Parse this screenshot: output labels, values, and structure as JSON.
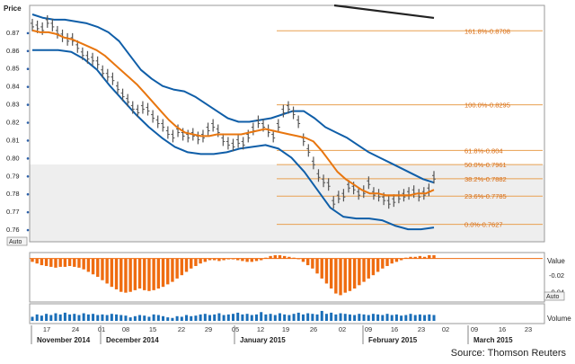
{
  "chart_data": {
    "type": "line",
    "price_axis": {
      "label": "Price",
      "ticks": [
        0.87,
        0.86,
        0.85,
        0.84,
        0.83,
        0.82,
        0.81,
        0.8,
        0.79,
        0.78,
        0.77,
        0.76
      ],
      "ylim": [
        0.753,
        0.885
      ],
      "auto_label": "Auto"
    },
    "x_axis": {
      "day_ticks": [
        "17",
        "24",
        "01",
        "08",
        "15",
        "22",
        "29",
        "05",
        "12",
        "19",
        "26",
        "02",
        "09",
        "16",
        "23",
        "02",
        "09",
        "16",
        "23"
      ],
      "month_labels": [
        "November 2014",
        "December 2014",
        "January 2015",
        "February 2015",
        "March 2015"
      ]
    },
    "price_bars": [
      0.874,
      0.873,
      0.872,
      0.876,
      0.874,
      0.87,
      0.868,
      0.866,
      0.866,
      0.862,
      0.858,
      0.856,
      0.855,
      0.853,
      0.848,
      0.846,
      0.844,
      0.839,
      0.835,
      0.832,
      0.828,
      0.826,
      0.828,
      0.827,
      0.823,
      0.82,
      0.818,
      0.814,
      0.812,
      0.815,
      0.813,
      0.812,
      0.813,
      0.811,
      0.812,
      0.816,
      0.818,
      0.815,
      0.81,
      0.808,
      0.807,
      0.809,
      0.808,
      0.812,
      0.816,
      0.82,
      0.818,
      0.815,
      0.812,
      0.818,
      0.826,
      0.828,
      0.825,
      0.82,
      0.81,
      0.804,
      0.797,
      0.79,
      0.787,
      0.785,
      0.775,
      0.778,
      0.779,
      0.784,
      0.783,
      0.78,
      0.781,
      0.786,
      0.78,
      0.779,
      0.777,
      0.775,
      0.776,
      0.778,
      0.779,
      0.78,
      0.781,
      0.779,
      0.78,
      0.782,
      0.789
    ],
    "moving_average": [
      0.871,
      0.87,
      0.87,
      0.869,
      0.867,
      0.866,
      0.864,
      0.862,
      0.86,
      0.857,
      0.853,
      0.849,
      0.845,
      0.841,
      0.836,
      0.831,
      0.826,
      0.821,
      0.817,
      0.814,
      0.813,
      0.812,
      0.812,
      0.813,
      0.813,
      0.813,
      0.813,
      0.814,
      0.815,
      0.816,
      0.815,
      0.814,
      0.813,
      0.812,
      0.811,
      0.809,
      0.804,
      0.798,
      0.792,
      0.788,
      0.785,
      0.782,
      0.78,
      0.78,
      0.779,
      0.779,
      0.779,
      0.779,
      0.78,
      0.78,
      0.782
    ],
    "bollinger_upper": [
      0.88,
      0.878,
      0.877,
      0.877,
      0.876,
      0.875,
      0.873,
      0.87,
      0.865,
      0.857,
      0.849,
      0.844,
      0.84,
      0.838,
      0.837,
      0.834,
      0.83,
      0.826,
      0.822,
      0.82,
      0.82,
      0.821,
      0.822,
      0.824,
      0.826,
      0.826,
      0.822,
      0.817,
      0.814,
      0.811,
      0.807,
      0.803,
      0.8,
      0.797,
      0.794,
      0.791,
      0.788,
      0.786
    ],
    "bollinger_lower": [
      0.86,
      0.86,
      0.86,
      0.859,
      0.855,
      0.849,
      0.84,
      0.832,
      0.824,
      0.817,
      0.811,
      0.806,
      0.803,
      0.802,
      0.802,
      0.803,
      0.805,
      0.806,
      0.807,
      0.805,
      0.8,
      0.792,
      0.782,
      0.772,
      0.767,
      0.766,
      0.766,
      0.765,
      0.762,
      0.76,
      0.76,
      0.761
    ],
    "trend_line": [
      0.885,
      0.878
    ],
    "fibonacci": [
      {
        "label": "161.8%-0.8708",
        "value": 0.8708
      },
      {
        "label": "100.0%-0.8295",
        "value": 0.8295
      },
      {
        "label": "61.8%-0.804",
        "value": 0.804
      },
      {
        "label": "50.0%-0.7961",
        "value": 0.7961
      },
      {
        "label": "38.2%-0.7882",
        "value": 0.7882
      },
      {
        "label": "23.6%-0.7785",
        "value": 0.7785
      },
      {
        "label": "0.0%-0.7627",
        "value": 0.7627
      }
    ],
    "oscillator": {
      "label": "Value",
      "ticks": [
        "-0.02",
        "-0.04"
      ],
      "ylim": [
        -0.05,
        0.005
      ],
      "auto_label": "Auto",
      "values": [
        -0.004,
        -0.006,
        -0.008,
        -0.009,
        -0.01,
        -0.011,
        -0.01,
        -0.01,
        -0.009,
        -0.01,
        -0.011,
        -0.013,
        -0.016,
        -0.019,
        -0.022,
        -0.026,
        -0.03,
        -0.034,
        -0.037,
        -0.04,
        -0.041,
        -0.04,
        -0.038,
        -0.036,
        -0.038,
        -0.039,
        -0.038,
        -0.036,
        -0.034,
        -0.031,
        -0.028,
        -0.024,
        -0.02,
        -0.016,
        -0.012,
        -0.009,
        -0.006,
        -0.004,
        -0.002,
        -0.002,
        -0.003,
        -0.002,
        -0.001,
        -0.001,
        -0.002,
        -0.003,
        -0.004,
        -0.004,
        -0.003,
        -0.002,
        0.001,
        0.003,
        0.004,
        0.004,
        0.003,
        0.002,
        0.001,
        0.0,
        -0.004,
        -0.008,
        -0.012,
        -0.018,
        -0.024,
        -0.03,
        -0.036,
        -0.042,
        -0.044,
        -0.041,
        -0.039,
        -0.036,
        -0.032,
        -0.028,
        -0.024,
        -0.02,
        -0.016,
        -0.012,
        -0.009,
        -0.006,
        -0.004,
        -0.002,
        0.001,
        0.002,
        0.002,
        0.003,
        0.002,
        0.004,
        0.004
      ]
    },
    "volume": {
      "label": "Volume",
      "values": [
        0.35,
        0.55,
        0.45,
        0.6,
        0.5,
        0.65,
        0.55,
        0.7,
        0.55,
        0.6,
        0.5,
        0.65,
        0.55,
        0.6,
        0.5,
        0.55,
        0.5,
        0.6,
        0.55,
        0.5,
        0.45,
        0.3,
        0.4,
        0.5,
        0.45,
        0.35,
        0.55,
        0.5,
        0.4,
        0.3,
        0.25,
        0.4,
        0.35,
        0.5,
        0.4,
        0.45,
        0.55,
        0.6,
        0.5,
        0.55,
        0.65,
        0.5,
        0.55,
        0.6,
        0.7,
        0.55,
        0.6,
        0.5,
        0.55,
        0.75,
        0.55,
        0.6,
        0.5,
        0.65,
        0.55,
        0.5,
        0.6,
        0.7,
        0.55,
        0.65,
        0.6,
        0.55,
        0.85,
        0.6,
        0.7,
        0.55,
        0.65,
        0.6,
        0.55,
        0.5,
        0.6,
        0.55,
        0.5,
        0.6,
        0.55,
        0.5,
        0.6,
        0.5,
        0.55,
        0.45,
        0.5,
        0.6,
        0.5,
        0.55,
        0.5,
        0.55,
        0.5
      ]
    },
    "source": "Source: Thomson Reuters",
    "colors": {
      "price_bars": "#555555",
      "moving_average": "#e8760f",
      "bollinger": "#0f5ea8",
      "trend_line": "#222222",
      "fibonacci": "#e8a050",
      "oscillator": "#ef6c10",
      "volume": "#1a6eb8",
      "axis_text": "#222222",
      "grid": "#c0c0c0",
      "shade": "#eeeeee"
    }
  }
}
